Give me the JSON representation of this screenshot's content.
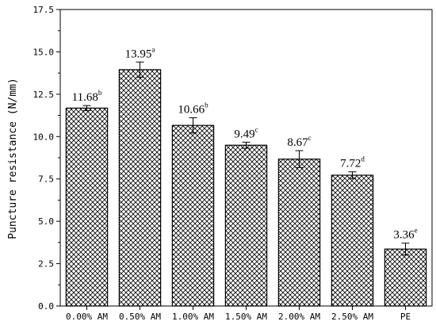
{
  "chart_data": {
    "type": "bar",
    "ylabel": "Puncture resistance (N/mm)",
    "xlabel": "",
    "ylim": [
      0,
      17.5
    ],
    "yticks": [
      "0.0",
      "2.5",
      "5.0",
      "7.5",
      "10.0",
      "12.5",
      "15.0",
      "17.5"
    ],
    "grid": false,
    "bar_fill": "cross-hatch",
    "bar_stroke": "#000000",
    "categories": [
      "0.00% AM",
      "0.50% AM",
      "1.00% AM",
      "1.50% AM",
      "2.00% AM",
      "2.50% AM",
      "PE"
    ],
    "values": [
      11.68,
      13.95,
      10.66,
      9.49,
      8.67,
      7.72,
      3.36
    ],
    "errors": [
      0.15,
      0.45,
      0.45,
      0.18,
      0.5,
      0.2,
      0.35
    ],
    "value_labels": [
      "11.68",
      "13.95",
      "10.66",
      "9.49",
      "8.67",
      "7.72",
      "3.36"
    ],
    "significance": [
      "b",
      "a",
      "b",
      "c",
      "c",
      "d",
      "e"
    ]
  }
}
